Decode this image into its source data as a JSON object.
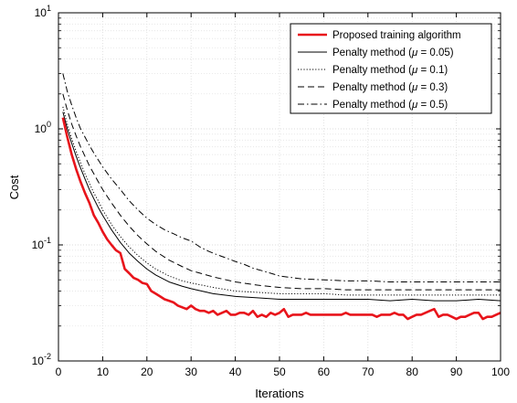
{
  "chart_data": {
    "type": "line",
    "title": "",
    "xlabel": "Iterations",
    "ylabel": "Cost",
    "xlim": [
      0,
      100
    ],
    "ylim": [
      0.01,
      10
    ],
    "y_scale": "log",
    "grid": true,
    "legend_position": "top-right",
    "x_ticks": [
      0,
      10,
      20,
      30,
      40,
      50,
      60,
      70,
      80,
      90,
      100
    ],
    "x_tick_labels": [
      "0",
      "10",
      "20",
      "30",
      "40",
      "50",
      "60",
      "70",
      "80",
      "90",
      "100"
    ],
    "y_ticks": [
      0.01,
      0.1,
      1,
      10
    ],
    "y_tick_labels": [
      {
        "base": "10",
        "exp": "-2"
      },
      {
        "base": "10",
        "exp": "-1"
      },
      {
        "base": "10",
        "exp": "0"
      },
      {
        "base": "10",
        "exp": "1"
      }
    ],
    "series": [
      {
        "name": "Proposed training algorithm",
        "color": "#e8141b",
        "style": "solid-thick",
        "x": [
          1,
          2,
          3,
          4,
          5,
          6,
          7,
          8,
          9,
          10,
          11,
          12,
          13,
          14,
          15,
          16,
          17,
          18,
          19,
          20,
          21,
          22,
          23,
          24,
          25,
          26,
          27,
          28,
          29,
          30,
          31,
          32,
          33,
          34,
          35,
          36,
          37,
          38,
          39,
          40,
          41,
          42,
          43,
          44,
          45,
          46,
          47,
          48,
          49,
          50,
          51,
          52,
          53,
          54,
          55,
          56,
          57,
          58,
          59,
          60,
          61,
          62,
          63,
          64,
          65,
          66,
          67,
          68,
          69,
          70,
          71,
          72,
          73,
          74,
          75,
          76,
          77,
          78,
          79,
          80,
          81,
          82,
          83,
          84,
          85,
          86,
          87,
          88,
          89,
          90,
          91,
          92,
          93,
          94,
          95,
          96,
          97,
          98,
          99,
          100
        ],
        "y": [
          1.25,
          0.85,
          0.6,
          0.45,
          0.35,
          0.28,
          0.23,
          0.18,
          0.155,
          0.13,
          0.112,
          0.1,
          0.09,
          0.085,
          0.062,
          0.057,
          0.052,
          0.05,
          0.047,
          0.046,
          0.04,
          0.038,
          0.036,
          0.034,
          0.033,
          0.032,
          0.03,
          0.029,
          0.028,
          0.03,
          0.028,
          0.027,
          0.027,
          0.026,
          0.027,
          0.025,
          0.026,
          0.027,
          0.025,
          0.025,
          0.026,
          0.026,
          0.025,
          0.027,
          0.024,
          0.025,
          0.024,
          0.026,
          0.025,
          0.026,
          0.028,
          0.024,
          0.025,
          0.025,
          0.025,
          0.026,
          0.025,
          0.025,
          0.025,
          0.025,
          0.025,
          0.025,
          0.025,
          0.025,
          0.026,
          0.025,
          0.025,
          0.025,
          0.025,
          0.025,
          0.025,
          0.024,
          0.025,
          0.025,
          0.025,
          0.026,
          0.025,
          0.025,
          0.023,
          0.024,
          0.025,
          0.025,
          0.026,
          0.027,
          0.028,
          0.024,
          0.025,
          0.025,
          0.024,
          0.023,
          0.024,
          0.024,
          0.025,
          0.026,
          0.026,
          0.023,
          0.024,
          0.024,
          0.025,
          0.026
        ]
      },
      {
        "name": "Penalty method (μ = 0.05)",
        "color": "#000000",
        "style": "solid",
        "x": [
          1,
          2,
          3,
          4,
          5,
          6,
          7,
          8,
          9,
          10,
          12,
          14,
          16,
          18,
          20,
          22,
          25,
          28,
          30,
          35,
          40,
          45,
          50,
          55,
          60,
          65,
          70,
          75,
          80,
          85,
          90,
          95,
          100
        ],
        "y": [
          1.4,
          1.0,
          0.75,
          0.58,
          0.46,
          0.37,
          0.3,
          0.25,
          0.21,
          0.18,
          0.135,
          0.105,
          0.085,
          0.072,
          0.062,
          0.055,
          0.048,
          0.044,
          0.042,
          0.038,
          0.036,
          0.035,
          0.034,
          0.034,
          0.034,
          0.034,
          0.034,
          0.033,
          0.034,
          0.033,
          0.033,
          0.034,
          0.033
        ]
      },
      {
        "name": "Penalty method (μ = 0.1)",
        "color": "#000000",
        "style": "dotted",
        "x": [
          1,
          2,
          3,
          4,
          5,
          6,
          7,
          8,
          9,
          10,
          12,
          14,
          16,
          18,
          20,
          22,
          25,
          28,
          30,
          35,
          40,
          45,
          50,
          55,
          60,
          65,
          70,
          75,
          80,
          85,
          90,
          95,
          100
        ],
        "y": [
          1.55,
          1.1,
          0.82,
          0.64,
          0.51,
          0.41,
          0.34,
          0.28,
          0.24,
          0.2,
          0.15,
          0.118,
          0.096,
          0.081,
          0.07,
          0.062,
          0.054,
          0.049,
          0.047,
          0.043,
          0.04,
          0.039,
          0.038,
          0.038,
          0.038,
          0.037,
          0.037,
          0.037,
          0.037,
          0.037,
          0.037,
          0.037,
          0.037
        ]
      },
      {
        "name": "Penalty method (μ = 0.3)",
        "color": "#000000",
        "style": "dashed",
        "x": [
          1,
          2,
          3,
          4,
          5,
          6,
          7,
          8,
          9,
          10,
          12,
          14,
          16,
          18,
          20,
          22,
          25,
          28,
          30,
          35,
          40,
          45,
          50,
          55,
          60,
          65,
          70,
          75,
          80,
          85,
          90,
          95,
          100
        ],
        "y": [
          2.0,
          1.45,
          1.1,
          0.87,
          0.7,
          0.58,
          0.48,
          0.41,
          0.35,
          0.3,
          0.23,
          0.18,
          0.145,
          0.12,
          0.102,
          0.088,
          0.074,
          0.065,
          0.06,
          0.053,
          0.048,
          0.045,
          0.043,
          0.042,
          0.042,
          0.041,
          0.041,
          0.041,
          0.041,
          0.041,
          0.041,
          0.041,
          0.041
        ]
      },
      {
        "name": "Penalty method (μ = 0.5)",
        "color": "#000000",
        "style": "dashdot",
        "x": [
          1,
          2,
          3,
          4,
          5,
          6,
          7,
          8,
          9,
          10,
          12,
          14,
          16,
          18,
          20,
          22,
          24,
          26,
          28,
          30,
          32,
          34,
          36,
          38,
          40,
          42,
          44,
          46,
          48,
          50,
          55,
          60,
          65,
          70,
          75,
          80,
          85,
          90,
          95,
          100
        ],
        "y": [
          3.0,
          2.1,
          1.6,
          1.25,
          1.0,
          0.85,
          0.72,
          0.62,
          0.54,
          0.47,
          0.37,
          0.3,
          0.24,
          0.2,
          0.17,
          0.15,
          0.135,
          0.125,
          0.115,
          0.108,
          0.096,
          0.088,
          0.082,
          0.077,
          0.072,
          0.068,
          0.063,
          0.06,
          0.057,
          0.054,
          0.051,
          0.05,
          0.049,
          0.049,
          0.048,
          0.048,
          0.048,
          0.048,
          0.048,
          0.048
        ]
      }
    ],
    "legend": [
      {
        "text": "Proposed training algorithm",
        "style": "solid-thick",
        "color": "#e8141b"
      },
      {
        "text": "Penalty method (μ = 0.05)",
        "style": "solid",
        "color": "#000000"
      },
      {
        "text": "Penalty method (μ = 0.1)",
        "style": "dotted",
        "color": "#000000"
      },
      {
        "text": "Penalty method (μ = 0.3)",
        "style": "dashed",
        "color": "#000000"
      },
      {
        "text": "Penalty method (μ = 0.5)",
        "style": "dashdot",
        "color": "#000000"
      }
    ]
  }
}
